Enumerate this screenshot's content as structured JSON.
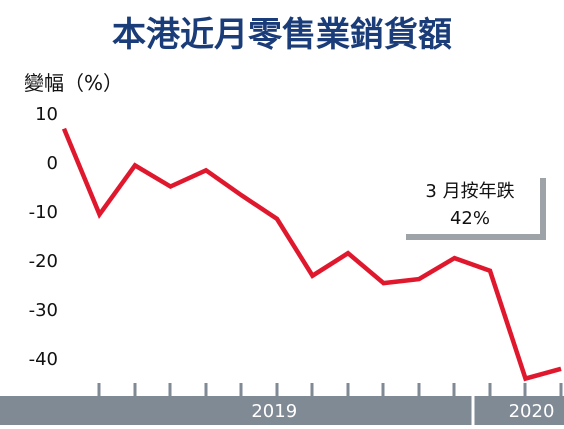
{
  "chart_data": {
    "type": "line",
    "title": "本港近月零售業銷貨額",
    "ylabel": "變幅（%）",
    "ylim": [
      -45,
      10
    ],
    "yticks": [
      10,
      0,
      -10,
      -20,
      -30,
      -40
    ],
    "x": [
      "2019-01",
      "2019-02",
      "2019-03",
      "2019-04",
      "2019-05",
      "2019-06",
      "2019-07",
      "2019-08",
      "2019-09",
      "2019-10",
      "2019-11",
      "2019-12",
      "2020-01",
      "2020-02",
      "2020-03"
    ],
    "values": [
      7,
      -10.5,
      -0.5,
      -4.8,
      -1.5,
      -6.6,
      -11.4,
      -23,
      -18.4,
      -24.5,
      -23.7,
      -19.4,
      -22,
      -44,
      -42
    ],
    "year_bands": [
      {
        "label": "2019",
        "start": "2019-01",
        "end": "2019-12"
      },
      {
        "label": "2020",
        "start": "2020-01",
        "end": "2020-03"
      }
    ],
    "annotation": {
      "line1": "3 月按年跌",
      "line2": "42%"
    },
    "colors": {
      "line": "#e0182d",
      "title": "#1a3c78",
      "band": "#7f8a95",
      "callout_shadow": "#9ea3a8"
    },
    "grid": false,
    "legend": "none"
  }
}
